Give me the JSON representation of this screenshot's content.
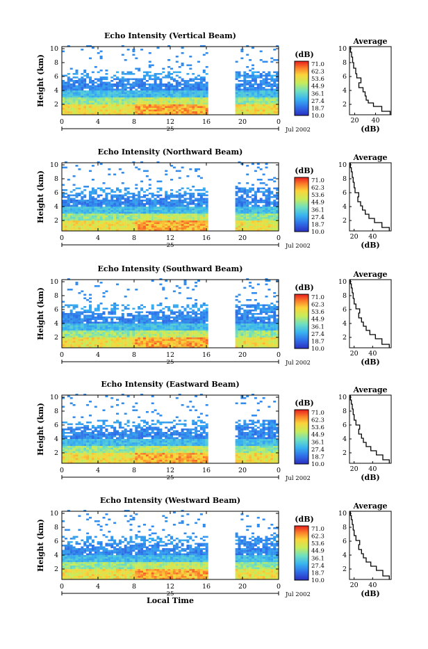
{
  "chart_data": [
    {
      "type": "heatmap",
      "title": "Echo Intensity (Vertical Beam)",
      "ylabel": "Height (km)",
      "xticks": [
        "0",
        "4",
        "8",
        "12",
        "16",
        "20",
        "0"
      ],
      "yticks": [
        "2",
        "4",
        "6",
        "8",
        "10"
      ],
      "xlim": [
        0,
        24
      ],
      "ylim": [
        0.5,
        10.3
      ],
      "day_label": "25",
      "date_label": "Jul 2002",
      "data_gap_hours": [
        16,
        19
      ],
      "colorbar": {
        "unit": "(dB)",
        "levels": [
          "71.0",
          "62.3",
          "53.6",
          "44.9",
          "36.1",
          "27.4",
          "18.7",
          "10.0"
        ]
      },
      "average_profile": {
        "title": "Average",
        "xlabel": "(dB)",
        "xticks": [
          "20",
          "40"
        ],
        "xlim": [
          15,
          55
        ],
        "yticks": [
          "2",
          "4",
          "6",
          "8",
          "10"
        ],
        "points": [
          [
            54,
            1
          ],
          [
            46,
            1.7
          ],
          [
            38,
            2.2
          ],
          [
            33,
            2.6
          ],
          [
            31,
            3.2
          ],
          [
            30,
            3.8
          ],
          [
            28,
            4.4
          ],
          [
            24,
            5.1
          ],
          [
            26,
            5.8
          ],
          [
            22,
            6.4
          ],
          [
            21,
            7.2
          ],
          [
            19,
            8
          ],
          [
            18,
            8.8
          ],
          [
            17,
            9.5
          ],
          [
            16,
            10
          ]
        ]
      }
    },
    {
      "type": "heatmap",
      "title": "Echo Intensity (Northward Beam)",
      "ylabel": "Height (km)",
      "xticks": [
        "0",
        "4",
        "8",
        "12",
        "16",
        "20",
        "0"
      ],
      "yticks": [
        "2",
        "4",
        "6",
        "8",
        "10"
      ],
      "xlim": [
        0,
        24
      ],
      "ylim": [
        0.5,
        10.3
      ],
      "day_label": "25",
      "date_label": "Jul 2002",
      "data_gap_hours": [
        16,
        19
      ],
      "colorbar": {
        "unit": "(dB)",
        "levels": [
          "71.0",
          "62.3",
          "53.6",
          "44.9",
          "36.1",
          "27.4",
          "18.7",
          "10.0"
        ]
      },
      "average_profile": {
        "title": "Average",
        "xlabel": "(dB)",
        "xticks": [
          "20",
          "40"
        ],
        "xlim": [
          15,
          60
        ],
        "yticks": [
          "2",
          "4",
          "6",
          "8",
          "10"
        ],
        "points": [
          [
            58,
            1
          ],
          [
            50,
            1.7
          ],
          [
            42,
            2.3
          ],
          [
            36,
            2.9
          ],
          [
            32,
            3.5
          ],
          [
            29,
            4.1
          ],
          [
            27,
            4.7
          ],
          [
            24,
            5.4
          ],
          [
            25,
            6
          ],
          [
            21,
            6.7
          ],
          [
            20,
            7.5
          ],
          [
            19,
            8.2
          ],
          [
            18,
            9
          ],
          [
            17,
            9.6
          ],
          [
            16,
            10
          ]
        ]
      }
    },
    {
      "type": "heatmap",
      "title": "Echo Intensity (Southward Beam)",
      "ylabel": "Height (km)",
      "xticks": [
        "0",
        "4",
        "8",
        "12",
        "16",
        "20",
        "0"
      ],
      "yticks": [
        "2",
        "4",
        "6",
        "8",
        "10"
      ],
      "xlim": [
        0,
        24
      ],
      "ylim": [
        0.5,
        10.3
      ],
      "day_label": "25",
      "date_label": "Jul 2002",
      "data_gap_hours": [
        16,
        19
      ],
      "colorbar": {
        "unit": "(dB)",
        "levels": [
          "71.0",
          "62.3",
          "53.6",
          "44.9",
          "36.1",
          "27.4",
          "18.7",
          "10.0"
        ]
      },
      "average_profile": {
        "title": "Average",
        "xlabel": "(dB)",
        "xticks": [
          "20",
          "40"
        ],
        "xlim": [
          15,
          60
        ],
        "yticks": [
          "2",
          "4",
          "6",
          "8",
          "10"
        ],
        "points": [
          [
            58,
            1
          ],
          [
            50,
            1.8
          ],
          [
            43,
            2.4
          ],
          [
            37,
            3
          ],
          [
            33,
            3.6
          ],
          [
            30,
            4.2
          ],
          [
            28,
            4.8
          ],
          [
            25,
            5.5
          ],
          [
            26,
            6.1
          ],
          [
            22,
            6.8
          ],
          [
            20,
            7.6
          ],
          [
            19,
            8.4
          ],
          [
            18,
            9.1
          ],
          [
            17,
            9.7
          ],
          [
            16,
            10
          ]
        ]
      }
    },
    {
      "type": "heatmap",
      "title": "Echo Intensity (Eastward Beam)",
      "ylabel": "Height (km)",
      "xticks": [
        "0",
        "4",
        "8",
        "12",
        "16",
        "20",
        "0"
      ],
      "yticks": [
        "2",
        "4",
        "6",
        "8",
        "10"
      ],
      "xlim": [
        0,
        24
      ],
      "ylim": [
        0.5,
        10.3
      ],
      "day_label": "25",
      "date_label": "Jul 2002",
      "data_gap_hours": [
        16,
        19
      ],
      "colorbar": {
        "unit": "(dB)",
        "levels": [
          "71.0",
          "62.3",
          "53.6",
          "44.9",
          "36.1",
          "27.4",
          "18.7",
          "10.0"
        ]
      },
      "average_profile": {
        "title": "Average",
        "xlabel": "(dB)",
        "xticks": [
          "20",
          "40"
        ],
        "xlim": [
          15,
          60
        ],
        "yticks": [
          "2",
          "4",
          "6",
          "8",
          "10"
        ],
        "points": [
          [
            58,
            1
          ],
          [
            51,
            1.7
          ],
          [
            44,
            2.3
          ],
          [
            38,
            2.9
          ],
          [
            33,
            3.5
          ],
          [
            30,
            4.1
          ],
          [
            28,
            4.7
          ],
          [
            25,
            5.4
          ],
          [
            26,
            6
          ],
          [
            22,
            6.7
          ],
          [
            20,
            7.5
          ],
          [
            19,
            8.3
          ],
          [
            18,
            9
          ],
          [
            17,
            9.6
          ],
          [
            16,
            10
          ]
        ]
      }
    },
    {
      "type": "heatmap",
      "title": "Echo Intensity (Westward Beam)",
      "ylabel": "Height (km)",
      "xlabel": "Local Time",
      "xticks": [
        "0",
        "4",
        "8",
        "12",
        "16",
        "20",
        "0"
      ],
      "yticks": [
        "2",
        "4",
        "6",
        "8",
        "10"
      ],
      "xlim": [
        0,
        24
      ],
      "ylim": [
        0.5,
        10.3
      ],
      "day_label": "25",
      "date_label": "Jul 2002",
      "data_gap_hours": [
        16,
        19
      ],
      "colorbar": {
        "unit": "(dB)",
        "levels": [
          "71.0",
          "62.3",
          "53.6",
          "44.9",
          "36.1",
          "27.4",
          "18.7",
          "10.0"
        ]
      },
      "average_profile": {
        "title": "Average",
        "xlabel": "(dB)",
        "xticks": [
          "20",
          "40"
        ],
        "xlim": [
          15,
          60
        ],
        "yticks": [
          "2",
          "4",
          "6",
          "8",
          "10"
        ],
        "points": [
          [
            58,
            1
          ],
          [
            51,
            1.8
          ],
          [
            44,
            2.4
          ],
          [
            38,
            3
          ],
          [
            33,
            3.6
          ],
          [
            30,
            4.2
          ],
          [
            28,
            4.8
          ],
          [
            25,
            5.5
          ],
          [
            26,
            6.1
          ],
          [
            22,
            6.8
          ],
          [
            20,
            7.6
          ],
          [
            19,
            8.4
          ],
          [
            18,
            9.1
          ],
          [
            17,
            9.7
          ],
          [
            16,
            10
          ]
        ]
      }
    }
  ]
}
